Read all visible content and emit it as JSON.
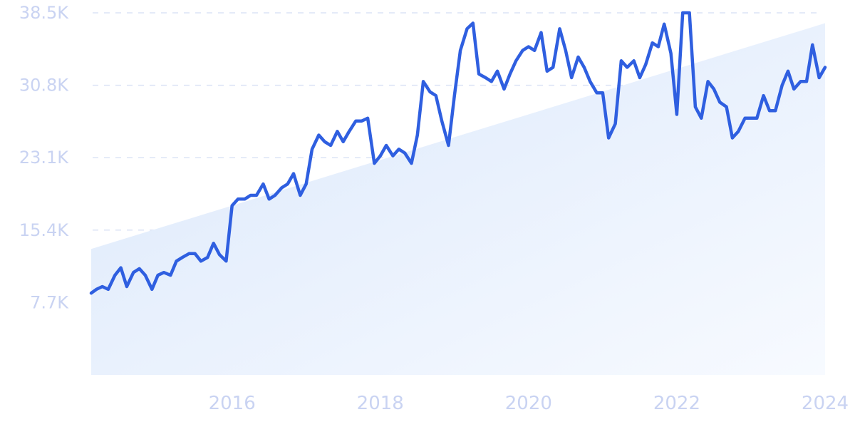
{
  "chart_data": {
    "type": "line",
    "title": "",
    "xlabel": "",
    "ylabel": "",
    "ylim": [
      0,
      38500
    ],
    "grid": "horizontal-dashed",
    "yticks": [
      {
        "value": 7700,
        "label": "7.7K"
      },
      {
        "value": 15400,
        "label": "15.4K"
      },
      {
        "value": 23100,
        "label": "23.1K"
      },
      {
        "value": 30800,
        "label": "30.8K"
      },
      {
        "value": 38500,
        "label": "38.5K"
      }
    ],
    "xticks": [
      {
        "value": 2016,
        "label": "2016"
      },
      {
        "value": 2018,
        "label": "2018"
      },
      {
        "value": 2020,
        "label": "2020"
      },
      {
        "value": 2022,
        "label": "2022"
      },
      {
        "value": 2024,
        "label": "2024"
      }
    ],
    "xlim": [
      2014.1,
      2024.0
    ],
    "trend": {
      "x": [
        2014.1,
        2024.0
      ],
      "y": [
        13400,
        37400
      ]
    },
    "series": [
      {
        "color": "#2f5fe0",
        "x": [
          2014.1,
          2014.17,
          2014.25,
          2014.33,
          2014.42,
          2014.5,
          2014.58,
          2014.67,
          2014.75,
          2014.83,
          2014.92,
          2015.0,
          2015.08,
          2015.17,
          2015.25,
          2015.33,
          2015.42,
          2015.5,
          2015.58,
          2015.67,
          2015.75,
          2015.83,
          2015.92,
          2016.0,
          2016.08,
          2016.17,
          2016.25,
          2016.33,
          2016.42,
          2016.5,
          2016.58,
          2016.67,
          2016.75,
          2016.83,
          2016.92,
          2017.0,
          2017.08,
          2017.17,
          2017.25,
          2017.33,
          2017.42,
          2017.5,
          2017.58,
          2017.67,
          2017.75,
          2017.83,
          2017.92,
          2018.0,
          2018.08,
          2018.17,
          2018.25,
          2018.33,
          2018.42,
          2018.5,
          2018.58,
          2018.67,
          2018.75,
          2018.83,
          2018.92,
          2019.0,
          2019.08,
          2019.17,
          2019.25,
          2019.33,
          2019.42,
          2019.5,
          2019.58,
          2019.67,
          2019.75,
          2019.83,
          2019.92,
          2020.0,
          2020.08,
          2020.17,
          2020.25,
          2020.33,
          2020.42,
          2020.5,
          2020.58,
          2020.67,
          2020.75,
          2020.83,
          2020.92,
          2021.0,
          2021.08,
          2021.17,
          2021.25,
          2021.33,
          2021.42,
          2021.5,
          2021.58,
          2021.67,
          2021.75,
          2021.83,
          2021.92,
          2022.0,
          2022.08,
          2022.17,
          2022.25,
          2022.33,
          2022.42,
          2022.5,
          2022.58,
          2022.67,
          2022.75,
          2022.83,
          2022.92,
          2023.0,
          2023.08,
          2023.17,
          2023.25,
          2023.33,
          2023.42,
          2023.5,
          2023.58,
          2023.67,
          2023.75,
          2023.83,
          2023.92,
          2024.0
        ],
        "y": [
          8700,
          9100,
          9400,
          9100,
          10600,
          11400,
          9400,
          10900,
          11300,
          10600,
          9100,
          10600,
          10900,
          10600,
          12100,
          12500,
          12900,
          12900,
          12100,
          12500,
          14000,
          12800,
          12100,
          18000,
          18700,
          18700,
          19100,
          19100,
          20300,
          18700,
          19100,
          19900,
          20300,
          21400,
          19100,
          20300,
          24000,
          25500,
          24800,
          24400,
          25900,
          24800,
          25900,
          27000,
          27000,
          27300,
          22500,
          23300,
          24400,
          23300,
          24000,
          23600,
          22500,
          25500,
          31200,
          30100,
          29700,
          27000,
          24400,
          29700,
          34500,
          36800,
          37400,
          32000,
          31600,
          31200,
          32300,
          30400,
          32000,
          33400,
          34500,
          34900,
          34500,
          36400,
          32300,
          32700,
          36800,
          34500,
          31600,
          33800,
          32700,
          31200,
          30000,
          30000,
          25200,
          26700,
          33400,
          32700,
          33400,
          31600,
          33000,
          35300,
          34900,
          37300,
          34200,
          27700,
          38500,
          38500,
          28500,
          27300,
          31200,
          30400,
          29000,
          28500,
          25200,
          25900,
          27300,
          27300,
          27300,
          29700,
          28100,
          28100,
          30800,
          32300,
          30400,
          31200,
          31200,
          35100,
          31600,
          32700
        ]
      }
    ]
  }
}
